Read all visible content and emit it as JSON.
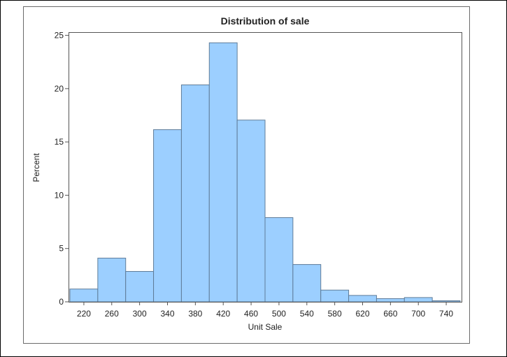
{
  "chart_data": {
    "type": "bar",
    "title": "Distribution of sale",
    "xlabel": "Unit Sale",
    "ylabel": "Percent",
    "bin_width": 40,
    "bin_centers": [
      220,
      260,
      300,
      340,
      380,
      420,
      460,
      500,
      540,
      580,
      620,
      660,
      700,
      740
    ],
    "x_ticks": [
      "220",
      "260",
      "300",
      "340",
      "380",
      "420",
      "460",
      "500",
      "540",
      "580",
      "620",
      "660",
      "700",
      "740"
    ],
    "values": [
      1.2,
      4.1,
      2.85,
      16.15,
      20.35,
      24.3,
      17.05,
      7.9,
      3.5,
      1.1,
      0.6,
      0.3,
      0.4,
      0.1
    ],
    "y_ticks": [
      "0",
      "5",
      "10",
      "15",
      "20",
      "25"
    ],
    "xlim": [
      198,
      762
    ],
    "ylim": [
      0,
      25.3
    ],
    "grid": false,
    "legend": "none",
    "colors": {
      "bar_fill": "#9ccfff",
      "bar_stroke": "#5f7c98",
      "axis": "#555555"
    }
  }
}
